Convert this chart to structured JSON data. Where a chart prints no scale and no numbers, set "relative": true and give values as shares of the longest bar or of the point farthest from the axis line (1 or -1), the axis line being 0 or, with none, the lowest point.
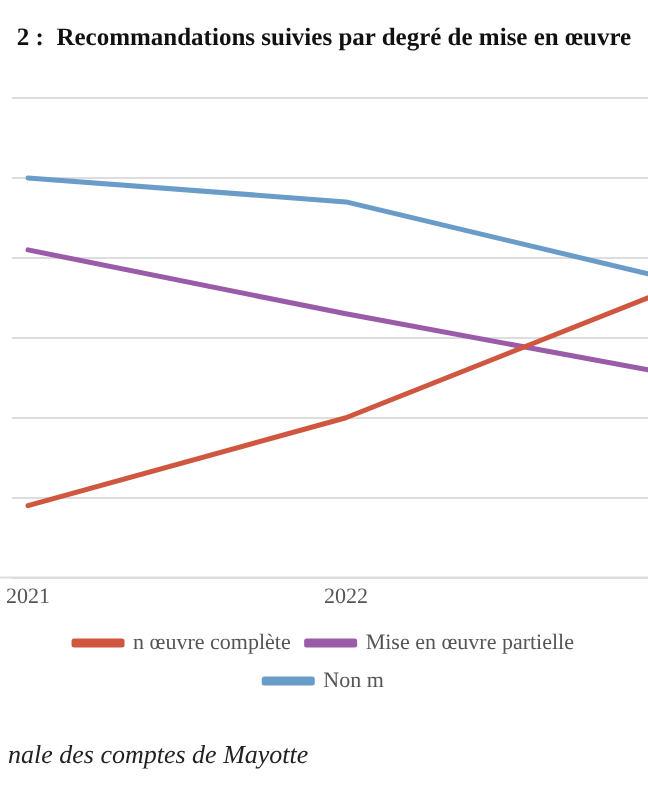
{
  "chart_data": {
    "type": "line",
    "title": "2 :  Recommandations suivies par degré de mise en œuvre",
    "relative": true,
    "x": [
      2021,
      2022,
      2022.95
    ],
    "xlim": [
      2020.95,
      2022.95
    ],
    "xticks": [
      2021,
      2022
    ],
    "series": [
      {
        "name": "n œuvre complète",
        "color": "#d0573f",
        "values": [
          0.18,
          0.4,
          0.7
        ]
      },
      {
        "name": "Mise en œuvre partielle",
        "color": "#9a5ba8",
        "values": [
          0.82,
          0.66,
          0.52
        ]
      },
      {
        "name": "Non m",
        "color": "#6a9cc9",
        "values": [
          1,
          0.94,
          0.76
        ]
      }
    ],
    "grid": "y",
    "legend": "bottom",
    "marker": "none",
    "line_style": "solid",
    "annotations": [
      "nale des comptes de Mayotte"
    ]
  }
}
